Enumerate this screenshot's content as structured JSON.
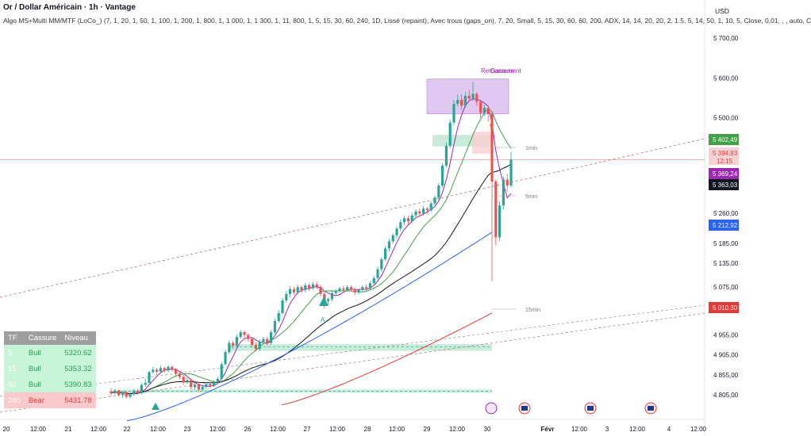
{
  "title": "Or / Dollar Américain · 1h · Vantage",
  "indicator_line": "Algo MS+Multi MM/MTF (LoCo_) (7, 1, 20, 1, 50, 1, 100, 1, 200, 1, 800, 1, 1 000, 1, 1 300, 1, 11, 800, 1, 5, 15, 30, 60, 240, 1D, Lissé (repaint), Avec trous (gaps_on), 7, 20, Small, 5, 15, 30, 60, 60, 200, ADX, 14, 14, 20, 20, 2, 1.5, 5, 14, 50, 1, 10, 5, Close, 0,01, , , auto, C",
  "currency": "USD",
  "colors": {
    "up": "#26a69a",
    "down": "#ef5350",
    "ma_fast": "#9c27b0",
    "ma_mid": "#43a047",
    "ma_slow": "#131722",
    "ma_blue": "#2962ff",
    "ma_red": "#e53935",
    "zone_green": "#c8ecd9",
    "zone_purple": "#e1c8f0",
    "zone_red": "#f9cfd2"
  },
  "chart_data": {
    "type": "candlestick",
    "ylim": [
      4760,
      5750
    ],
    "y_ticks": [
      "5 700,00",
      "5 600,00",
      "5 500,00",
      "5 260,00",
      "5 185,00",
      "5 135,00",
      "5 075,00",
      "4 955,00",
      "4 905,00",
      "4 855,00",
      "4 805,00"
    ],
    "x_ticks": [
      "20",
      "12:00",
      "21",
      "12:00",
      "22",
      "12:00",
      "23",
      "12:00",
      "26",
      "12:00",
      "27",
      "12:00",
      "28",
      "12:00",
      "29",
      "12:00",
      "30",
      "Févr",
      "12:00",
      "3",
      "12:00",
      "4",
      "12:00"
    ],
    "price_labels": [
      {
        "text": "5 402,49",
        "color": "#43a047",
        "value": 5402.49
      },
      {
        "text": "5 394,83",
        "sub": "12:15",
        "color": "#f7d2d5",
        "text_color": "#e53935",
        "value": 5394.83
      },
      {
        "text": "5 369,24",
        "color": "#9c27b0",
        "value": 5369.24
      },
      {
        "text": "5 363,03",
        "color": "#131722",
        "value": 5363.03
      },
      {
        "text": "5 212,92",
        "color": "#2962ff",
        "value": 5212.92
      },
      {
        "text": "5 010,30",
        "color": "#e53935",
        "value": 5010.3
      }
    ],
    "annotations": [
      "Retournement",
      "Cassure",
      "1min",
      "5min",
      "15min",
      "A"
    ],
    "last_price": 5394.83,
    "candles": [
      [
        4814,
        4809,
        4822,
        4802
      ],
      [
        4809,
        4816,
        4820,
        4805
      ],
      [
        4816,
        4805,
        4818,
        4800
      ],
      [
        4805,
        4812,
        4815,
        4798
      ],
      [
        4812,
        4800,
        4813,
        4795
      ],
      [
        4800,
        4806,
        4810,
        4796
      ],
      [
        4806,
        4815,
        4820,
        4803
      ],
      [
        4815,
        4809,
        4819,
        4805
      ],
      [
        4809,
        4830,
        4834,
        4806
      ],
      [
        4830,
        4835,
        4846,
        4825
      ],
      [
        4835,
        4862,
        4866,
        4831
      ],
      [
        4862,
        4868,
        4875,
        4858
      ],
      [
        4868,
        4863,
        4872,
        4855
      ],
      [
        4863,
        4872,
        4878,
        4860
      ],
      [
        4872,
        4866,
        4875,
        4860
      ],
      [
        4866,
        4875,
        4880,
        4862
      ],
      [
        4875,
        4870,
        4879,
        4864
      ],
      [
        4870,
        4858,
        4872,
        4852
      ],
      [
        4858,
        4850,
        4862,
        4844
      ],
      [
        4850,
        4836,
        4855,
        4830
      ],
      [
        4836,
        4842,
        4848,
        4832
      ],
      [
        4842,
        4824,
        4846,
        4818
      ],
      [
        4824,
        4830,
        4835,
        4818
      ],
      [
        4830,
        4818,
        4834,
        4812
      ],
      [
        4818,
        4825,
        4830,
        4815
      ],
      [
        4825,
        4832,
        4838,
        4820
      ],
      [
        4832,
        4828,
        4836,
        4822
      ],
      [
        4828,
        4836,
        4842,
        4825
      ],
      [
        4836,
        4845,
        4850,
        4832
      ],
      [
        4845,
        4882,
        4888,
        4842
      ],
      [
        4882,
        4912,
        4918,
        4878
      ],
      [
        4912,
        4935,
        4942,
        4908
      ],
      [
        4935,
        4928,
        4940,
        4920
      ],
      [
        4928,
        4950,
        4956,
        4924
      ],
      [
        4950,
        4962,
        4968,
        4945
      ],
      [
        4962,
        4955,
        4966,
        4948
      ],
      [
        4955,
        4945,
        4960,
        4938
      ],
      [
        4945,
        4930,
        4950,
        4924
      ],
      [
        4930,
        4920,
        4936,
        4914
      ],
      [
        4920,
        4938,
        4944,
        4915
      ],
      [
        4938,
        4945,
        4950,
        4932
      ],
      [
        4945,
        4935,
        4950,
        4928
      ],
      [
        4935,
        4962,
        4968,
        4930
      ],
      [
        4962,
        4990,
        4996,
        4958
      ],
      [
        4990,
        5010,
        5018,
        4985
      ],
      [
        5010,
        5042,
        5048,
        5005
      ],
      [
        5042,
        5058,
        5065,
        5036
      ],
      [
        5058,
        5070,
        5078,
        5050
      ],
      [
        5070,
        5062,
        5075,
        5055
      ],
      [
        5062,
        5075,
        5082,
        5056
      ],
      [
        5075,
        5068,
        5080,
        5060
      ],
      [
        5068,
        5080,
        5086,
        5062
      ],
      [
        5080,
        5072,
        5085,
        5065
      ],
      [
        5072,
        5082,
        5088,
        5068
      ],
      [
        5082,
        5076,
        5090,
        5070
      ],
      [
        5076,
        5058,
        5080,
        5052
      ],
      [
        5058,
        5040,
        5062,
        5022
      ],
      [
        5040,
        5045,
        5050,
        5030
      ],
      [
        5045,
        5060,
        5065,
        5040
      ],
      [
        5060,
        5065,
        5070,
        5055
      ],
      [
        5065,
        5072,
        5076,
        5060
      ],
      [
        5072,
        5068,
        5078,
        5062
      ],
      [
        5068,
        5075,
        5080,
        5064
      ],
      [
        5075,
        5070,
        5080,
        5064
      ],
      [
        5070,
        5062,
        5074,
        5055
      ],
      [
        5062,
        5068,
        5072,
        5056
      ],
      [
        5068,
        5075,
        5080,
        5064
      ],
      [
        5075,
        5072,
        5082,
        5066
      ],
      [
        5072,
        5085,
        5090,
        5068
      ],
      [
        5085,
        5098,
        5104,
        5080
      ],
      [
        5098,
        5120,
        5126,
        5094
      ],
      [
        5120,
        5145,
        5150,
        5114
      ],
      [
        5145,
        5172,
        5178,
        5140
      ],
      [
        5172,
        5190,
        5196,
        5165
      ],
      [
        5190,
        5205,
        5210,
        5184
      ],
      [
        5205,
        5222,
        5228,
        5198
      ],
      [
        5222,
        5238,
        5245,
        5215
      ],
      [
        5238,
        5248,
        5255,
        5230
      ],
      [
        5248,
        5240,
        5254,
        5232
      ],
      [
        5240,
        5255,
        5262,
        5236
      ],
      [
        5255,
        5265,
        5270,
        5248
      ],
      [
        5265,
        5260,
        5272,
        5252
      ],
      [
        5260,
        5272,
        5278,
        5255
      ],
      [
        5272,
        5268,
        5276,
        5260
      ],
      [
        5268,
        5285,
        5290,
        5264
      ],
      [
        5285,
        5300,
        5305,
        5280
      ],
      [
        5300,
        5330,
        5336,
        5295
      ],
      [
        5330,
        5380,
        5386,
        5325
      ],
      [
        5380,
        5430,
        5438,
        5375
      ],
      [
        5430,
        5488,
        5495,
        5424
      ],
      [
        5488,
        5535,
        5545,
        5482
      ],
      [
        5535,
        5545,
        5558,
        5528
      ],
      [
        5545,
        5530,
        5560,
        5520
      ],
      [
        5530,
        5555,
        5565,
        5525
      ],
      [
        5555,
        5548,
        5570,
        5540
      ],
      [
        5548,
        5560,
        5590,
        5542
      ],
      [
        5560,
        5540,
        5565,
        5530
      ],
      [
        5540,
        5512,
        5545,
        5500
      ],
      [
        5512,
        5525,
        5532,
        5505
      ],
      [
        5525,
        5510,
        5530,
        5490
      ],
      [
        5510,
        5340,
        5515,
        5090
      ],
      [
        5340,
        5200,
        5345,
        5180
      ],
      [
        5200,
        5280,
        5290,
        5190
      ],
      [
        5280,
        5345,
        5352,
        5270
      ],
      [
        5345,
        5330,
        5360,
        5315
      ],
      [
        5330,
        5395,
        5415,
        5325
      ]
    ],
    "series": [
      {
        "name": "ma7",
        "values": []
      },
      {
        "name": "ma20",
        "values": []
      },
      {
        "name": "ma50",
        "values": []
      }
    ]
  },
  "table": {
    "headers": [
      "TF",
      "Cassure",
      "Niveau"
    ],
    "rows": [
      {
        "tf": "5",
        "cassure": "Bull",
        "niveau": "5320.62",
        "kind": "bull"
      },
      {
        "tf": "15",
        "cassure": "Bull",
        "niveau": "5353.32",
        "kind": "bull"
      },
      {
        "tf": "60",
        "cassure": "Bull",
        "niveau": "5390.83",
        "kind": "bull"
      },
      {
        "tf": "240",
        "cassure": "Bear",
        "niveau": "5431.78",
        "kind": "bear"
      }
    ]
  }
}
